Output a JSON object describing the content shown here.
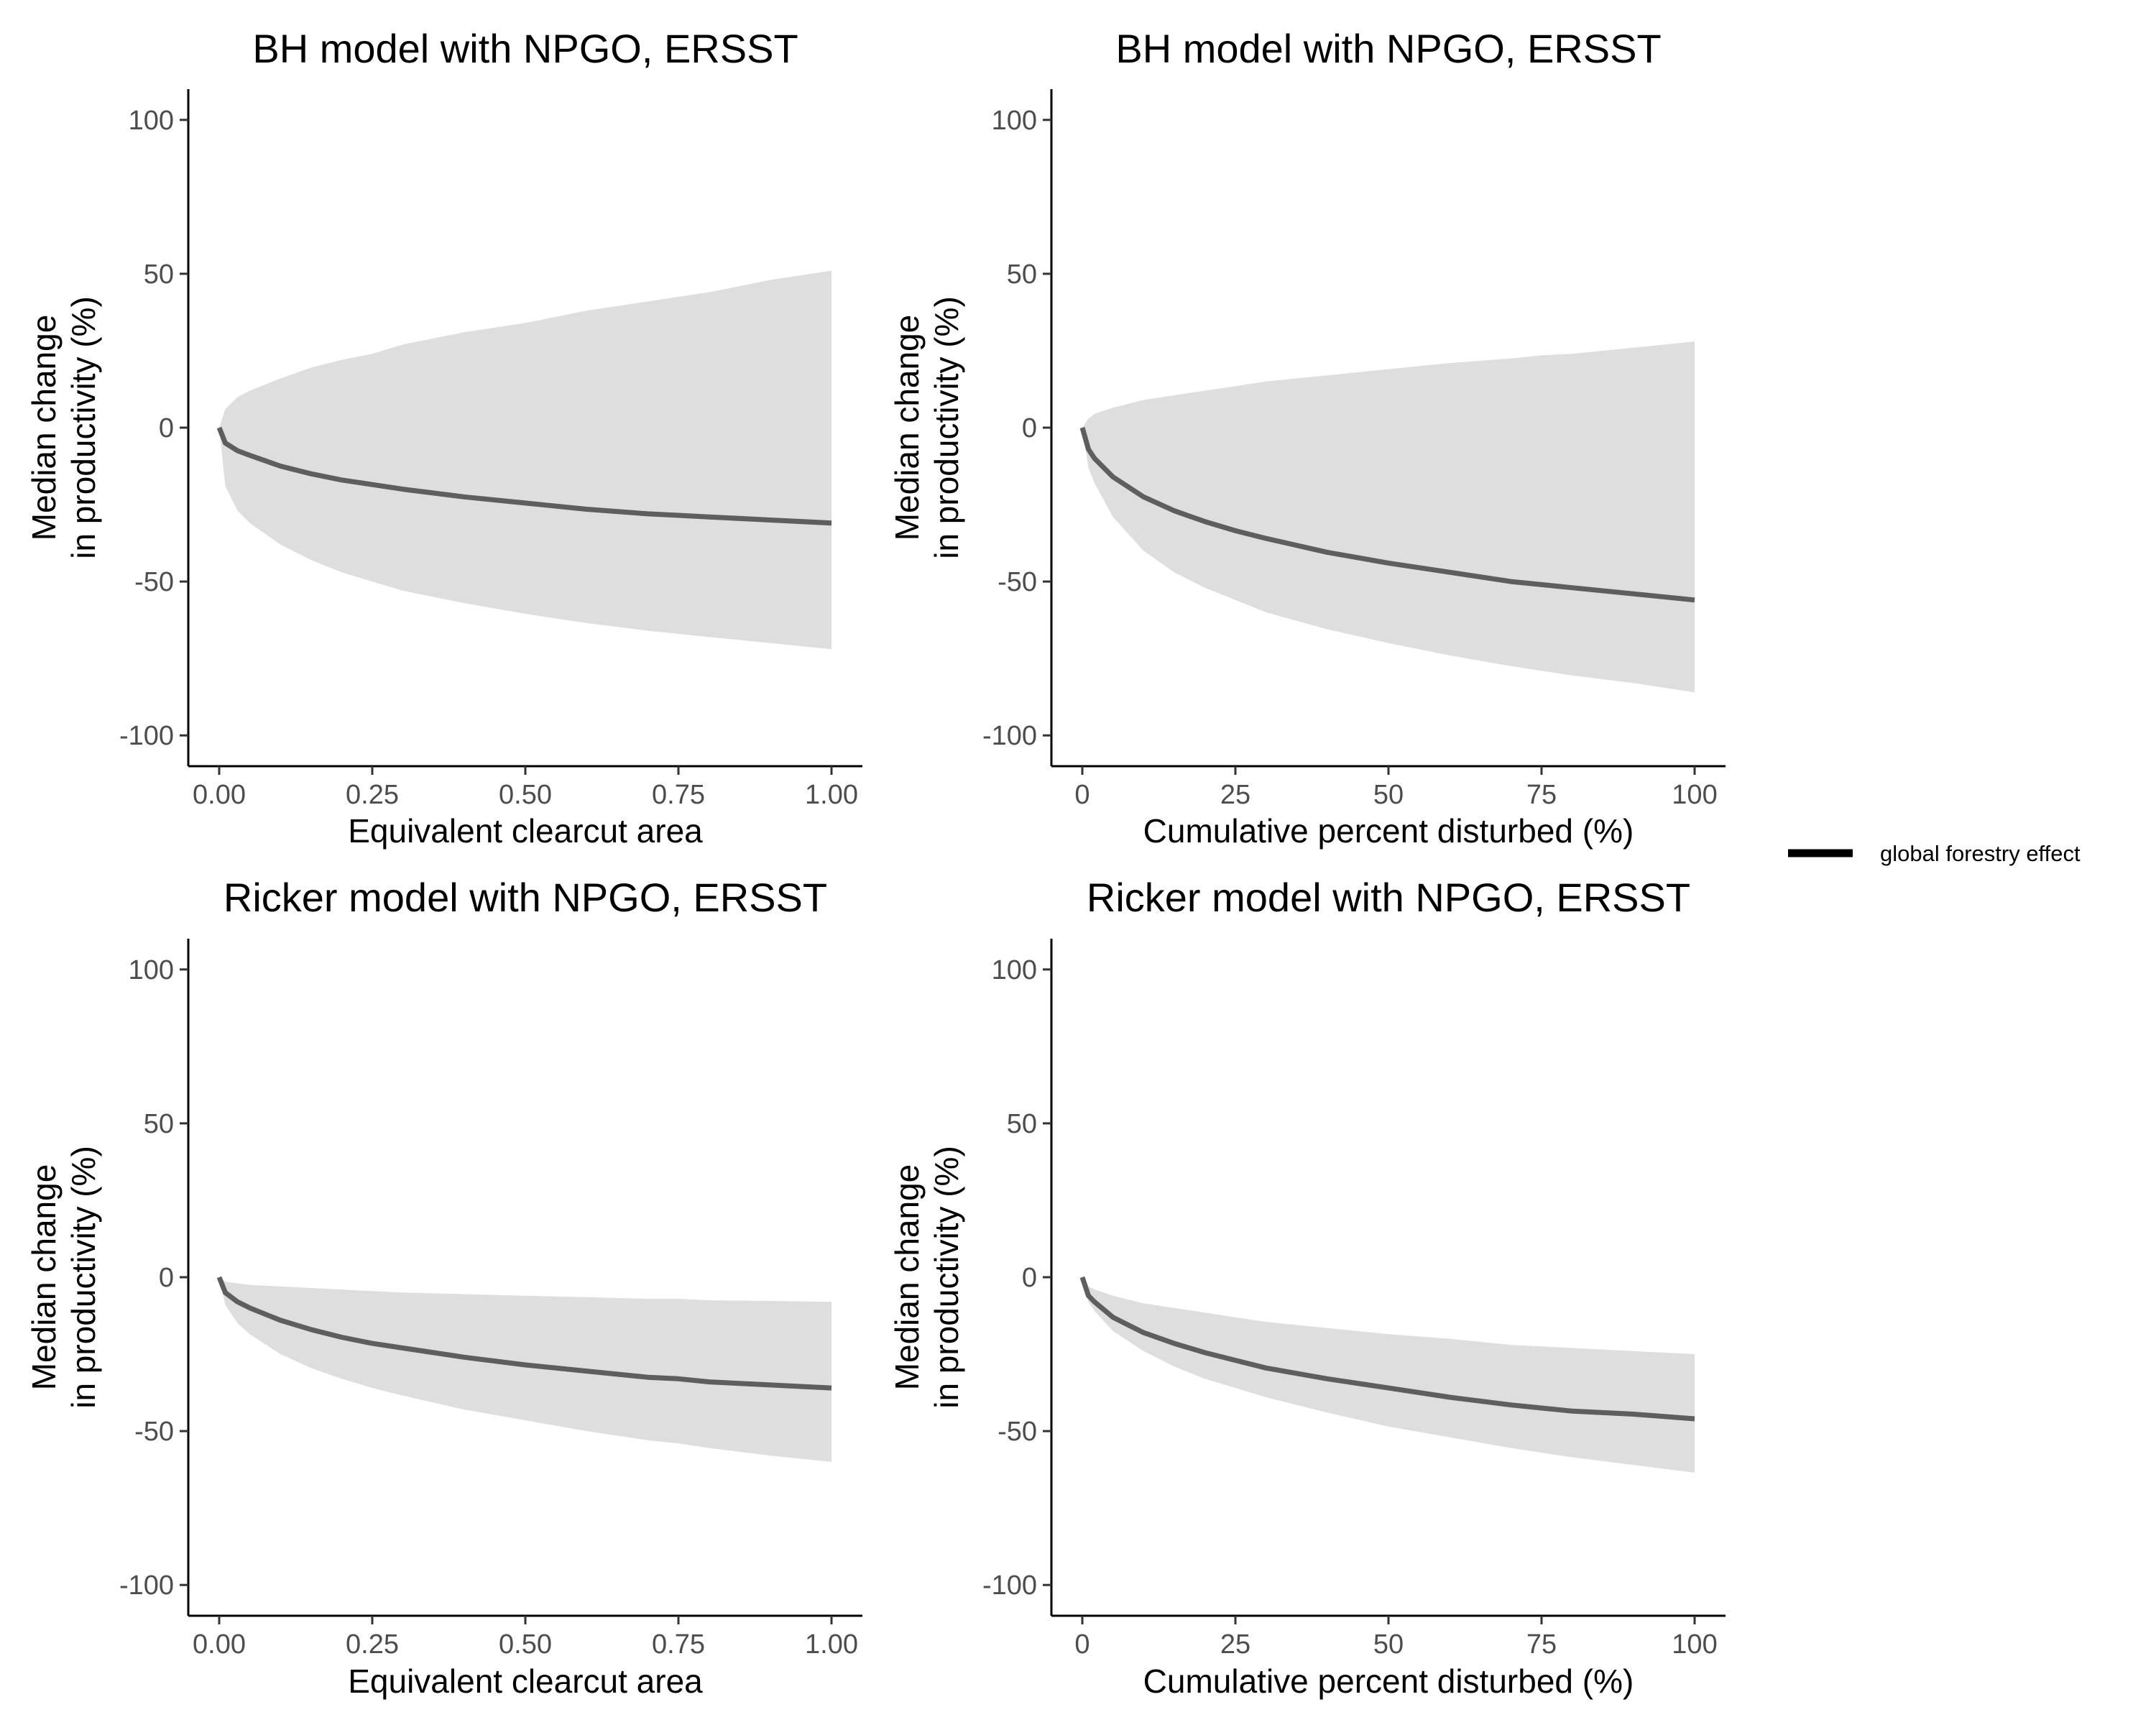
{
  "chart_data": [
    {
      "type": "area",
      "title": "BH model with NPGO, ERSST",
      "xlabel": "Equivalent clearcut area",
      "ylabel": [
        "Median change",
        "in productivity (%)"
      ],
      "xlim": [
        0,
        1
      ],
      "ylim": [
        -110,
        110
      ],
      "xticks": [
        0,
        0.25,
        0.5,
        0.75,
        1
      ],
      "xtick_labels": [
        "0.00",
        "0.25",
        "0.50",
        "0.75",
        "1.00"
      ],
      "yticks": [
        -100,
        -50,
        0,
        50,
        100
      ],
      "ytick_labels": [
        "-100",
        "-50",
        "0",
        "50",
        "100"
      ],
      "grid": false,
      "x": [
        0,
        0.01,
        0.03,
        0.05,
        0.1,
        0.15,
        0.2,
        0.25,
        0.3,
        0.4,
        0.5,
        0.6,
        0.7,
        0.75,
        0.8,
        0.9,
        1.0
      ],
      "series": [
        {
          "name": "global forestry effect",
          "values": [
            0,
            -5,
            -7.5,
            -9,
            -12.5,
            -15,
            -17,
            -18.5,
            -20,
            -22.5,
            -24.5,
            -26.5,
            -28,
            -28.5,
            -29,
            -30,
            -31
          ]
        },
        {
          "role": "lower",
          "values": [
            0,
            -19,
            -27,
            -31,
            -38,
            -43,
            -47,
            -50,
            -53,
            -57,
            -60.5,
            -63.5,
            -66,
            -67,
            -68,
            -70,
            -72
          ]
        },
        {
          "role": "upper",
          "values": [
            0,
            6,
            10,
            12,
            16,
            19.5,
            22,
            24,
            27,
            31,
            34,
            38,
            41,
            42.5,
            44,
            48,
            51
          ]
        }
      ]
    },
    {
      "type": "area",
      "title": "BH model with NPGO, ERSST",
      "xlabel": "Cumulative percent disturbed (%)",
      "ylabel": [
        "Median change",
        "in productivity (%)"
      ],
      "xlim": [
        0,
        100
      ],
      "ylim": [
        -110,
        110
      ],
      "xticks": [
        0,
        25,
        50,
        75,
        100
      ],
      "xtick_labels": [
        "0",
        "25",
        "50",
        "75",
        "100"
      ],
      "yticks": [
        -100,
        -50,
        0,
        50,
        100
      ],
      "ytick_labels": [
        "-100",
        "-50",
        "0",
        "50",
        "100"
      ],
      "grid": false,
      "x": [
        0,
        1,
        2,
        5,
        10,
        15,
        20,
        25,
        30,
        40,
        50,
        60,
        70,
        75,
        80,
        90,
        100
      ],
      "series": [
        {
          "name": "global forestry effect",
          "values": [
            0,
            -7,
            -10,
            -16,
            -22.5,
            -27,
            -30.5,
            -33.5,
            -36,
            -40.5,
            -44,
            -47,
            -50,
            -51,
            -52,
            -54,
            -56
          ]
        },
        {
          "role": "lower",
          "values": [
            0,
            -13,
            -18,
            -29,
            -40,
            -47,
            -52,
            -56,
            -60,
            -65.5,
            -70,
            -74,
            -77.5,
            -79,
            -80.5,
            -83,
            -86
          ]
        },
        {
          "role": "upper",
          "values": [
            0,
            3,
            4.5,
            6.5,
            9,
            10.5,
            12,
            13.5,
            15,
            17,
            19,
            21,
            22.5,
            23.5,
            24,
            26,
            28
          ]
        }
      ]
    },
    {
      "type": "area",
      "title": "Ricker model with NPGO, ERSST",
      "xlabel": "Equivalent clearcut area",
      "ylabel": [
        "Median change",
        "in productivity (%)"
      ],
      "xlim": [
        0,
        1
      ],
      "ylim": [
        -110,
        110
      ],
      "xticks": [
        0,
        0.25,
        0.5,
        0.75,
        1
      ],
      "xtick_labels": [
        "0.00",
        "0.25",
        "0.50",
        "0.75",
        "1.00"
      ],
      "yticks": [
        -100,
        -50,
        0,
        50,
        100
      ],
      "ytick_labels": [
        "-100",
        "-50",
        "0",
        "50",
        "100"
      ],
      "grid": false,
      "x": [
        0,
        0.01,
        0.03,
        0.05,
        0.1,
        0.15,
        0.2,
        0.25,
        0.3,
        0.4,
        0.5,
        0.6,
        0.7,
        0.75,
        0.8,
        0.9,
        1.0
      ],
      "series": [
        {
          "name": "global forestry effect",
          "values": [
            0,
            -5,
            -8,
            -10,
            -14,
            -17,
            -19.5,
            -21.5,
            -23,
            -26,
            -28.5,
            -30.5,
            -32.5,
            -33,
            -34,
            -35,
            -36
          ]
        },
        {
          "role": "lower",
          "values": [
            0,
            -9,
            -15,
            -18.5,
            -25,
            -29.5,
            -33,
            -36,
            -38.5,
            -43,
            -46.5,
            -50,
            -53,
            -54,
            -55.5,
            -58,
            -60
          ]
        },
        {
          "role": "upper",
          "values": [
            0,
            -1.5,
            -2,
            -2.5,
            -3,
            -3.5,
            -4,
            -4.5,
            -5,
            -5.5,
            -6,
            -6.5,
            -7,
            -7,
            -7.5,
            -7.7,
            -8
          ]
        }
      ]
    },
    {
      "type": "area",
      "title": "Ricker model with NPGO, ERSST",
      "xlabel": "Cumulative percent disturbed (%)",
      "ylabel": [
        "Median change",
        "in productivity (%)"
      ],
      "xlim": [
        0,
        100
      ],
      "ylim": [
        -110,
        110
      ],
      "xticks": [
        0,
        25,
        50,
        75,
        100
      ],
      "xtick_labels": [
        "0",
        "25",
        "50",
        "75",
        "100"
      ],
      "yticks": [
        -100,
        -50,
        0,
        50,
        100
      ],
      "ytick_labels": [
        "-100",
        "-50",
        "0",
        "50",
        "100"
      ],
      "grid": false,
      "x": [
        0,
        1,
        2,
        5,
        10,
        15,
        20,
        25,
        30,
        40,
        50,
        60,
        70,
        75,
        80,
        90,
        100
      ],
      "series": [
        {
          "name": "global forestry effect",
          "values": [
            0,
            -6,
            -8,
            -13,
            -18,
            -21.5,
            -24.5,
            -27,
            -29.5,
            -33,
            -36,
            -39,
            -41.5,
            -42.5,
            -43.5,
            -44.5,
            -46
          ]
        },
        {
          "role": "lower",
          "values": [
            0,
            -8,
            -11,
            -17.5,
            -24,
            -29,
            -33,
            -36,
            -39,
            -44,
            -48.5,
            -52,
            -55.5,
            -57,
            -58.5,
            -61,
            -63.5
          ]
        },
        {
          "role": "upper",
          "values": [
            0,
            -3,
            -4,
            -6,
            -8.5,
            -10,
            -11.5,
            -13,
            -14.5,
            -16.5,
            -18.5,
            -20,
            -22,
            -22.5,
            -23,
            -24,
            -25
          ]
        }
      ]
    }
  ],
  "legend": {
    "label": "global forestry effect",
    "placement": "right"
  },
  "colors": {
    "line": "#5e5e5e",
    "ribbon": "#dedede",
    "axis": "#000000",
    "tick_text": "#4d4d4d",
    "legend_key": "#000000"
  }
}
